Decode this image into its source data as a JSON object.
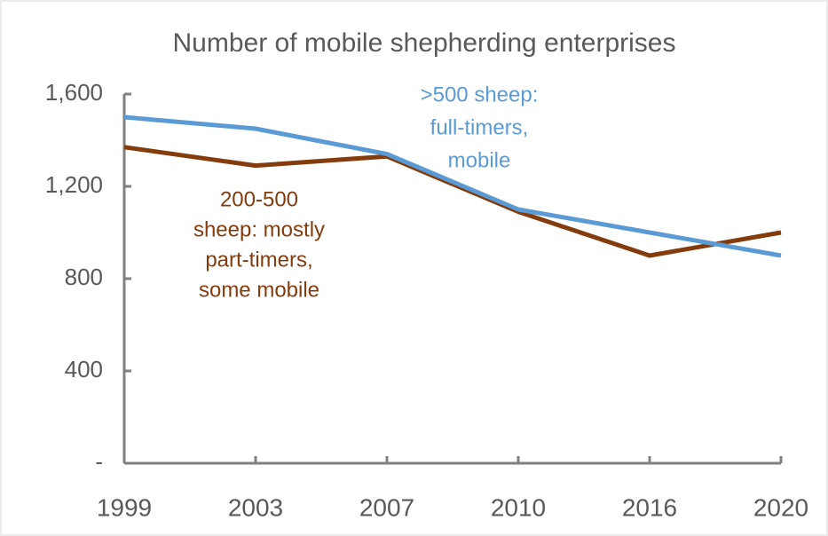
{
  "chart_data": {
    "type": "line",
    "title": "Number of mobile shepherding enterprises",
    "categories": [
      "1999",
      "2003",
      "2007",
      "2010",
      "2016",
      "2020"
    ],
    "series": [
      {
        "name": [
          ">500 sheep:",
          "full-timers,",
          "mobile"
        ],
        "color": "#5b9bd5",
        "values": [
          1500,
          1450,
          1340,
          1100,
          1000,
          900
        ]
      },
      {
        "name": [
          "200-500",
          "sheep: mostly",
          "part-timers,",
          "some mobile"
        ],
        "color": "#843c0c",
        "values": [
          1370,
          1290,
          1330,
          1090,
          900,
          1000
        ]
      }
    ],
    "ylim": [
      0,
      1600
    ],
    "yticks": [
      {
        "value": 0,
        "label": "-"
      },
      400,
      800,
      {
        "value": 1200,
        "label": "1,200"
      },
      {
        "value": 1600,
        "label": "1,600"
      }
    ]
  }
}
